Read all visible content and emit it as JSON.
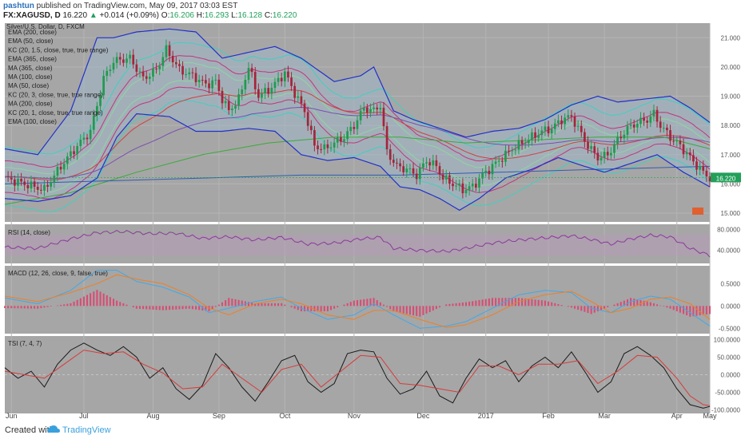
{
  "header": {
    "author": "pashtun",
    "published_text": "published on TradingView.com, May 09, 2017 03:03 EST",
    "symbol": "FX:XAGUSD, D",
    "last": "16.220",
    "change": "+0.014 (+0.09%)",
    "o_label": "O:",
    "o_value": "16.206",
    "h_label": "H:",
    "h_value": "16.293",
    "l_label": "L:",
    "l_value": "16.128",
    "c_label": "C:",
    "c_value": "16.220"
  },
  "footer": {
    "created_with": "Created with",
    "brand": "TradingView"
  },
  "colors": {
    "panel_bg": "#a6a6a6",
    "grid": "#b4b4b4",
    "up": "#1f9a4f",
    "down": "#a6233a",
    "bb": "#2231c8",
    "rsi": "#8a3a9a",
    "macd": "#41a8e8",
    "signal": "#f07f22",
    "tsi": "#1a1a1a",
    "tsi_signal": "#d83a3a",
    "last_badge": "#22a05a"
  },
  "chart_data": [
    {
      "type": "candlestick",
      "title": "Silver/U.S. Dollar, D, FXCM",
      "legend": [
        "EMA (200, close)",
        "EMA (50, close)",
        "KC (20, 1.5, close, true, true range)",
        "EMA (365, close)",
        "MA (365, close)",
        "MA (100, close)",
        "MA (50, close)",
        "KC (20, 3, close, true, true range)",
        "MA (200, close)",
        "KC (20, 1, close, true, true range)",
        "EMA (100, close)"
      ],
      "legend_placement": "top-left",
      "x_ticks": [
        "Jun",
        "Jul",
        "Aug",
        "Sep",
        "Oct",
        "Nov",
        "Dec",
        "2017",
        "Feb",
        "Mar",
        "Apr",
        "May"
      ],
      "y_ticks": [
        "21.000",
        "20.000",
        "19.000",
        "18.000",
        "17.000",
        "16.000",
        "15.000"
      ],
      "ylim": [
        14.7,
        21.5
      ],
      "last_value": "16.220",
      "close_path": [
        [
          0,
          16.2
        ],
        [
          6,
          16.0
        ],
        [
          12,
          15.8
        ],
        [
          17,
          16.6
        ],
        [
          22,
          17.3
        ],
        [
          26,
          17.8
        ],
        [
          30,
          19.6
        ],
        [
          33,
          20.2
        ],
        [
          38,
          20.3
        ],
        [
          42,
          19.6
        ],
        [
          46,
          19.9
        ],
        [
          49,
          20.6
        ],
        [
          53,
          19.9
        ],
        [
          57,
          19.7
        ],
        [
          61,
          19.4
        ],
        [
          64,
          19.5
        ],
        [
          66,
          18.9
        ],
        [
          68,
          18.5
        ],
        [
          71,
          18.9
        ],
        [
          74,
          20.0
        ],
        [
          77,
          19.0
        ],
        [
          81,
          19.3
        ],
        [
          85,
          19.8
        ],
        [
          88,
          19.1
        ],
        [
          91,
          18.5
        ],
        [
          94,
          17.3
        ],
        [
          97,
          17.2
        ],
        [
          100,
          17.4
        ],
        [
          103,
          17.6
        ],
        [
          106,
          18.0
        ],
        [
          109,
          18.6
        ],
        [
          112,
          18.5
        ],
        [
          114,
          18.7
        ],
        [
          116,
          17.1
        ],
        [
          119,
          16.6
        ],
        [
          122,
          16.5
        ],
        [
          125,
          16.3
        ],
        [
          128,
          16.8
        ],
        [
          131,
          16.6
        ],
        [
          133,
          16.2
        ],
        [
          136,
          16.0
        ],
        [
          139,
          15.8
        ],
        [
          142,
          15.9
        ],
        [
          145,
          16.3
        ],
        [
          148,
          16.6
        ],
        [
          151,
          16.9
        ],
        [
          154,
          17.2
        ],
        [
          157,
          17.4
        ],
        [
          160,
          17.6
        ],
        [
          163,
          17.8
        ],
        [
          166,
          17.9
        ],
        [
          169,
          18.2
        ],
        [
          172,
          18.3
        ],
        [
          174,
          17.9
        ],
        [
          177,
          17.3
        ],
        [
          180,
          16.9
        ],
        [
          183,
          17.0
        ],
        [
          186,
          17.5
        ],
        [
          189,
          17.9
        ],
        [
          192,
          18.1
        ],
        [
          195,
          18.2
        ],
        [
          197,
          18.4
        ],
        [
          199,
          18.0
        ],
        [
          202,
          17.6
        ],
        [
          205,
          17.3
        ],
        [
          208,
          16.9
        ],
        [
          211,
          16.5
        ],
        [
          214,
          16.2
        ]
      ],
      "bollinger_upper": [
        [
          0,
          17.2
        ],
        [
          10,
          17.0
        ],
        [
          20,
          18.5
        ],
        [
          28,
          21.0
        ],
        [
          33,
          21.0
        ],
        [
          40,
          21.2
        ],
        [
          50,
          21.3
        ],
        [
          58,
          21.2
        ],
        [
          66,
          20.3
        ],
        [
          74,
          20.5
        ],
        [
          82,
          20.7
        ],
        [
          90,
          20.3
        ],
        [
          100,
          19.5
        ],
        [
          108,
          19.7
        ],
        [
          112,
          20.0
        ],
        [
          118,
          18.5
        ],
        [
          124,
          18.2
        ],
        [
          132,
          17.9
        ],
        [
          140,
          17.6
        ],
        [
          148,
          17.8
        ],
        [
          156,
          17.9
        ],
        [
          164,
          18.2
        ],
        [
          172,
          18.7
        ],
        [
          180,
          19.0
        ],
        [
          186,
          18.8
        ],
        [
          194,
          18.9
        ],
        [
          202,
          19.0
        ],
        [
          208,
          18.6
        ],
        [
          214,
          18.1
        ]
      ],
      "bollinger_lower": [
        [
          0,
          15.5
        ],
        [
          10,
          15.4
        ],
        [
          20,
          15.6
        ],
        [
          28,
          16.2
        ],
        [
          34,
          17.6
        ],
        [
          40,
          18.4
        ],
        [
          50,
          18.3
        ],
        [
          58,
          17.8
        ],
        [
          66,
          17.8
        ],
        [
          74,
          17.9
        ],
        [
          82,
          17.8
        ],
        [
          90,
          17.0
        ],
        [
          98,
          16.8
        ],
        [
          106,
          16.9
        ],
        [
          114,
          16.6
        ],
        [
          120,
          15.9
        ],
        [
          126,
          15.8
        ],
        [
          132,
          15.5
        ],
        [
          138,
          15.1
        ],
        [
          144,
          15.5
        ],
        [
          152,
          16.2
        ],
        [
          160,
          16.5
        ],
        [
          168,
          16.9
        ],
        [
          176,
          16.6
        ],
        [
          182,
          16.4
        ],
        [
          190,
          16.7
        ],
        [
          198,
          17.0
        ],
        [
          206,
          16.4
        ],
        [
          214,
          15.9
        ]
      ],
      "ema_200": [
        [
          0,
          15.3
        ],
        [
          20,
          15.7
        ],
        [
          40,
          16.4
        ],
        [
          60,
          17.0
        ],
        [
          80,
          17.4
        ],
        [
          100,
          17.6
        ],
        [
          120,
          17.6
        ],
        [
          140,
          17.4
        ],
        [
          160,
          17.5
        ],
        [
          180,
          17.6
        ],
        [
          200,
          17.6
        ],
        [
          214,
          17.2
        ]
      ],
      "ma_365": [
        [
          0,
          16.0
        ],
        [
          30,
          16.1
        ],
        [
          60,
          16.2
        ],
        [
          90,
          16.3
        ],
        [
          120,
          16.3
        ],
        [
          150,
          16.4
        ],
        [
          180,
          16.5
        ],
        [
          214,
          16.6
        ]
      ]
    },
    {
      "type": "line",
      "title": "RSI (14, close)",
      "y_ticks": [
        "80.0000",
        "40.0000"
      ],
      "ylim": [
        15,
        90
      ],
      "band": [
        30,
        70
      ],
      "series": [
        {
          "values": [
            [
              0,
              46
            ],
            [
              10,
              44
            ],
            [
              20,
              62
            ],
            [
              28,
              74
            ],
            [
              36,
              76
            ],
            [
              44,
              72
            ],
            [
              52,
              73
            ],
            [
              60,
              63
            ],
            [
              68,
              66
            ],
            [
              76,
              60
            ],
            [
              84,
              65
            ],
            [
              92,
              52
            ],
            [
              100,
              54
            ],
            [
              108,
              62
            ],
            [
              114,
              65
            ],
            [
              118,
              44
            ],
            [
              126,
              40
            ],
            [
              134,
              38
            ],
            [
              140,
              44
            ],
            [
              148,
              54
            ],
            [
              156,
              60
            ],
            [
              164,
              64
            ],
            [
              172,
              68
            ],
            [
              178,
              61
            ],
            [
              184,
              52
            ],
            [
              190,
              62
            ],
            [
              196,
              69
            ],
            [
              202,
              66
            ],
            [
              208,
              44
            ],
            [
              214,
              30
            ]
          ]
        }
      ]
    },
    {
      "type": "line",
      "title": "MACD (12, 26, close, 9, false, true)",
      "y_ticks": [
        "0.5000",
        "0.0000",
        "-0.5000"
      ],
      "ylim": [
        -0.62,
        0.9
      ],
      "macd": [
        [
          0,
          0.18
        ],
        [
          10,
          0.05
        ],
        [
          20,
          0.35
        ],
        [
          28,
          0.8
        ],
        [
          34,
          0.8
        ],
        [
          40,
          0.55
        ],
        [
          48,
          0.42
        ],
        [
          56,
          0.2
        ],
        [
          62,
          -0.15
        ],
        [
          68,
          -0.05
        ],
        [
          76,
          0.1
        ],
        [
          84,
          0.2
        ],
        [
          90,
          -0.05
        ],
        [
          98,
          -0.3
        ],
        [
          106,
          -0.2
        ],
        [
          112,
          0.05
        ],
        [
          118,
          -0.2
        ],
        [
          126,
          -0.5
        ],
        [
          134,
          -0.45
        ],
        [
          140,
          -0.35
        ],
        [
          148,
          -0.05
        ],
        [
          156,
          0.25
        ],
        [
          164,
          0.35
        ],
        [
          172,
          0.3
        ],
        [
          178,
          -0.05
        ],
        [
          184,
          -0.15
        ],
        [
          190,
          0.1
        ],
        [
          196,
          0.22
        ],
        [
          202,
          0.15
        ],
        [
          208,
          -0.15
        ],
        [
          214,
          -0.45
        ]
      ],
      "signal": [
        [
          0,
          0.22
        ],
        [
          10,
          0.1
        ],
        [
          20,
          0.3
        ],
        [
          28,
          0.5
        ],
        [
          34,
          0.7
        ],
        [
          40,
          0.6
        ],
        [
          48,
          0.5
        ],
        [
          56,
          0.25
        ],
        [
          62,
          -0.05
        ],
        [
          68,
          -0.2
        ],
        [
          76,
          0.05
        ],
        [
          84,
          0.15
        ],
        [
          90,
          0.05
        ],
        [
          98,
          -0.2
        ],
        [
          106,
          -0.3
        ],
        [
          112,
          -0.1
        ],
        [
          118,
          -0.1
        ],
        [
          126,
          -0.3
        ],
        [
          134,
          -0.48
        ],
        [
          140,
          -0.42
        ],
        [
          148,
          -0.2
        ],
        [
          156,
          0.1
        ],
        [
          164,
          0.25
        ],
        [
          172,
          0.33
        ],
        [
          178,
          0.1
        ],
        [
          184,
          -0.15
        ],
        [
          190,
          -0.05
        ],
        [
          196,
          0.15
        ],
        [
          202,
          0.2
        ],
        [
          208,
          0.05
        ],
        [
          214,
          -0.3
        ]
      ]
    },
    {
      "type": "line",
      "title": "TSI (7, 4, 7)",
      "y_ticks": [
        "100.0000",
        "50.0000",
        "0.0000",
        "-50.0000",
        "-100.0000"
      ],
      "ylim": [
        -110,
        110
      ],
      "tsi": [
        [
          0,
          20
        ],
        [
          4,
          -10
        ],
        [
          8,
          10
        ],
        [
          12,
          -35
        ],
        [
          16,
          30
        ],
        [
          20,
          70
        ],
        [
          24,
          90
        ],
        [
          28,
          70
        ],
        [
          32,
          55
        ],
        [
          36,
          80
        ],
        [
          40,
          50
        ],
        [
          44,
          -10
        ],
        [
          48,
          20
        ],
        [
          52,
          -40
        ],
        [
          56,
          -70
        ],
        [
          60,
          -30
        ],
        [
          64,
          60
        ],
        [
          68,
          20
        ],
        [
          72,
          -35
        ],
        [
          76,
          -75
        ],
        [
          80,
          -20
        ],
        [
          84,
          40
        ],
        [
          88,
          55
        ],
        [
          92,
          -20
        ],
        [
          96,
          -50
        ],
        [
          100,
          -25
        ],
        [
          104,
          60
        ],
        [
          108,
          70
        ],
        [
          112,
          65
        ],
        [
          116,
          -10
        ],
        [
          120,
          -55
        ],
        [
          124,
          -40
        ],
        [
          128,
          10
        ],
        [
          132,
          -60
        ],
        [
          136,
          -80
        ],
        [
          140,
          -10
        ],
        [
          144,
          45
        ],
        [
          148,
          20
        ],
        [
          152,
          40
        ],
        [
          156,
          -20
        ],
        [
          160,
          25
        ],
        [
          164,
          50
        ],
        [
          168,
          20
        ],
        [
          172,
          65
        ],
        [
          176,
          10
        ],
        [
          180,
          -50
        ],
        [
          184,
          -20
        ],
        [
          188,
          60
        ],
        [
          192,
          80
        ],
        [
          196,
          55
        ],
        [
          200,
          20
        ],
        [
          204,
          -40
        ],
        [
          208,
          -85
        ],
        [
          212,
          -95
        ],
        [
          214,
          -90
        ]
      ],
      "tsi_signal": [
        [
          0,
          10
        ],
        [
          6,
          0
        ],
        [
          12,
          -10
        ],
        [
          18,
          30
        ],
        [
          24,
          70
        ],
        [
          30,
          60
        ],
        [
          36,
          65
        ],
        [
          42,
          30
        ],
        [
          48,
          5
        ],
        [
          54,
          -40
        ],
        [
          60,
          -35
        ],
        [
          66,
          30
        ],
        [
          72,
          -10
        ],
        [
          78,
          -50
        ],
        [
          84,
          15
        ],
        [
          90,
          30
        ],
        [
          96,
          -35
        ],
        [
          102,
          10
        ],
        [
          108,
          55
        ],
        [
          114,
          50
        ],
        [
          120,
          -25
        ],
        [
          126,
          -30
        ],
        [
          132,
          -40
        ],
        [
          138,
          -50
        ],
        [
          144,
          25
        ],
        [
          150,
          25
        ],
        [
          156,
          0
        ],
        [
          162,
          30
        ],
        [
          168,
          30
        ],
        [
          174,
          40
        ],
        [
          180,
          -25
        ],
        [
          186,
          10
        ],
        [
          192,
          55
        ],
        [
          198,
          50
        ],
        [
          204,
          -10
        ],
        [
          208,
          -60
        ],
        [
          212,
          -85
        ],
        [
          214,
          -88
        ]
      ]
    }
  ]
}
